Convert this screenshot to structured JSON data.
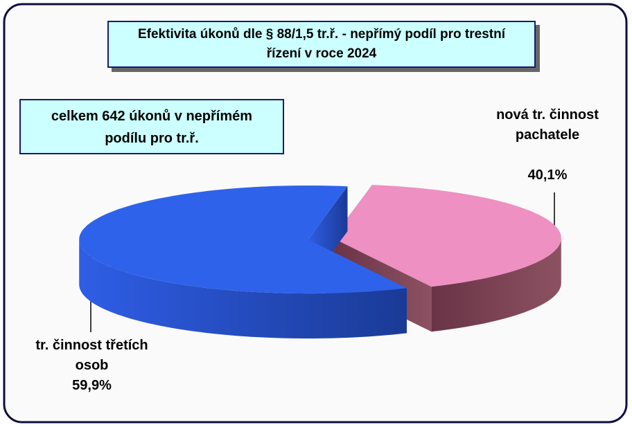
{
  "chart_data": {
    "type": "pie",
    "title": "Efektivita úkonů dle § 88/1,5 tr.ř. - nepřímý podíl pro trestní řízení v roce 2024",
    "annotation": "celkem 642 úkonů v nepřímém podílu pro tr.ř.",
    "categories": [
      "nová tr. činnost pachatele",
      "tr. činnost třetích osob"
    ],
    "values": [
      40.1,
      59.9
    ],
    "value_labels": [
      "40,1%",
      "59,9%"
    ],
    "colors": [
      "#ee90c2",
      "#2f62ea"
    ]
  }
}
